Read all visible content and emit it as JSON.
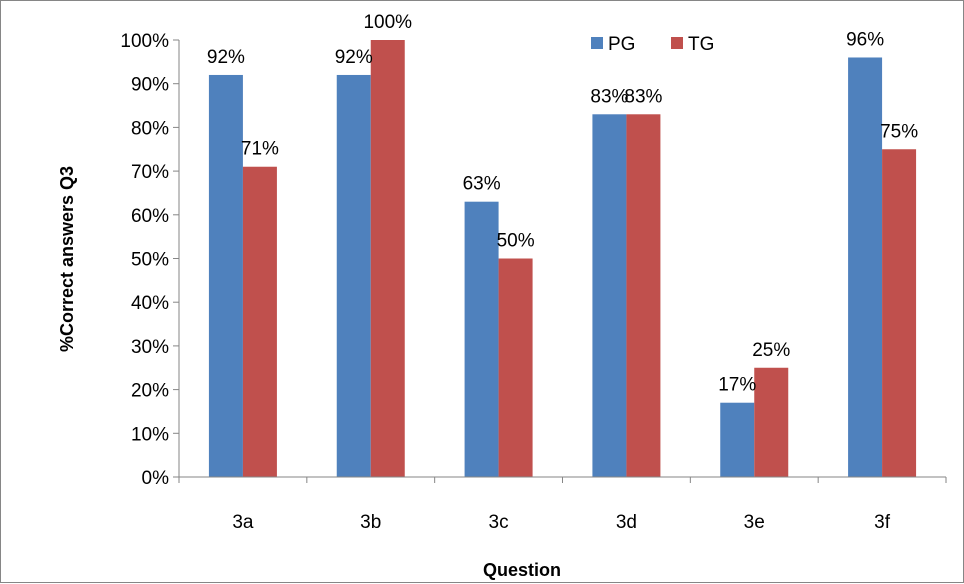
{
  "chart_data": {
    "type": "bar",
    "categories": [
      "3a",
      "3b",
      "3c",
      "3d",
      "3e",
      "3f"
    ],
    "series": [
      {
        "name": "PG",
        "values": [
          92,
          92,
          63,
          83,
          17,
          96
        ],
        "labels": [
          "92%",
          "92%",
          "63%",
          "83%",
          "17%",
          "96%"
        ],
        "color": "#4F81BD"
      },
      {
        "name": "TG",
        "values": [
          71,
          100,
          50,
          83,
          25,
          75
        ],
        "labels": [
          "71%",
          "100%",
          "50%",
          "83%",
          "25%",
          "75%"
        ],
        "color": "#C0504D"
      }
    ],
    "xlabel": "Question",
    "ylabel": "%Correct  answers Q3",
    "ylim": [
      0,
      100
    ],
    "yticks": [
      "0%",
      "10%",
      "20%",
      "30%",
      "40%",
      "50%",
      "60%",
      "70%",
      "80%",
      "90%",
      "100%"
    ],
    "grid": false,
    "legend_position": "top-right"
  },
  "colors": {
    "axis": "#868686",
    "frame_border": "#868686"
  }
}
